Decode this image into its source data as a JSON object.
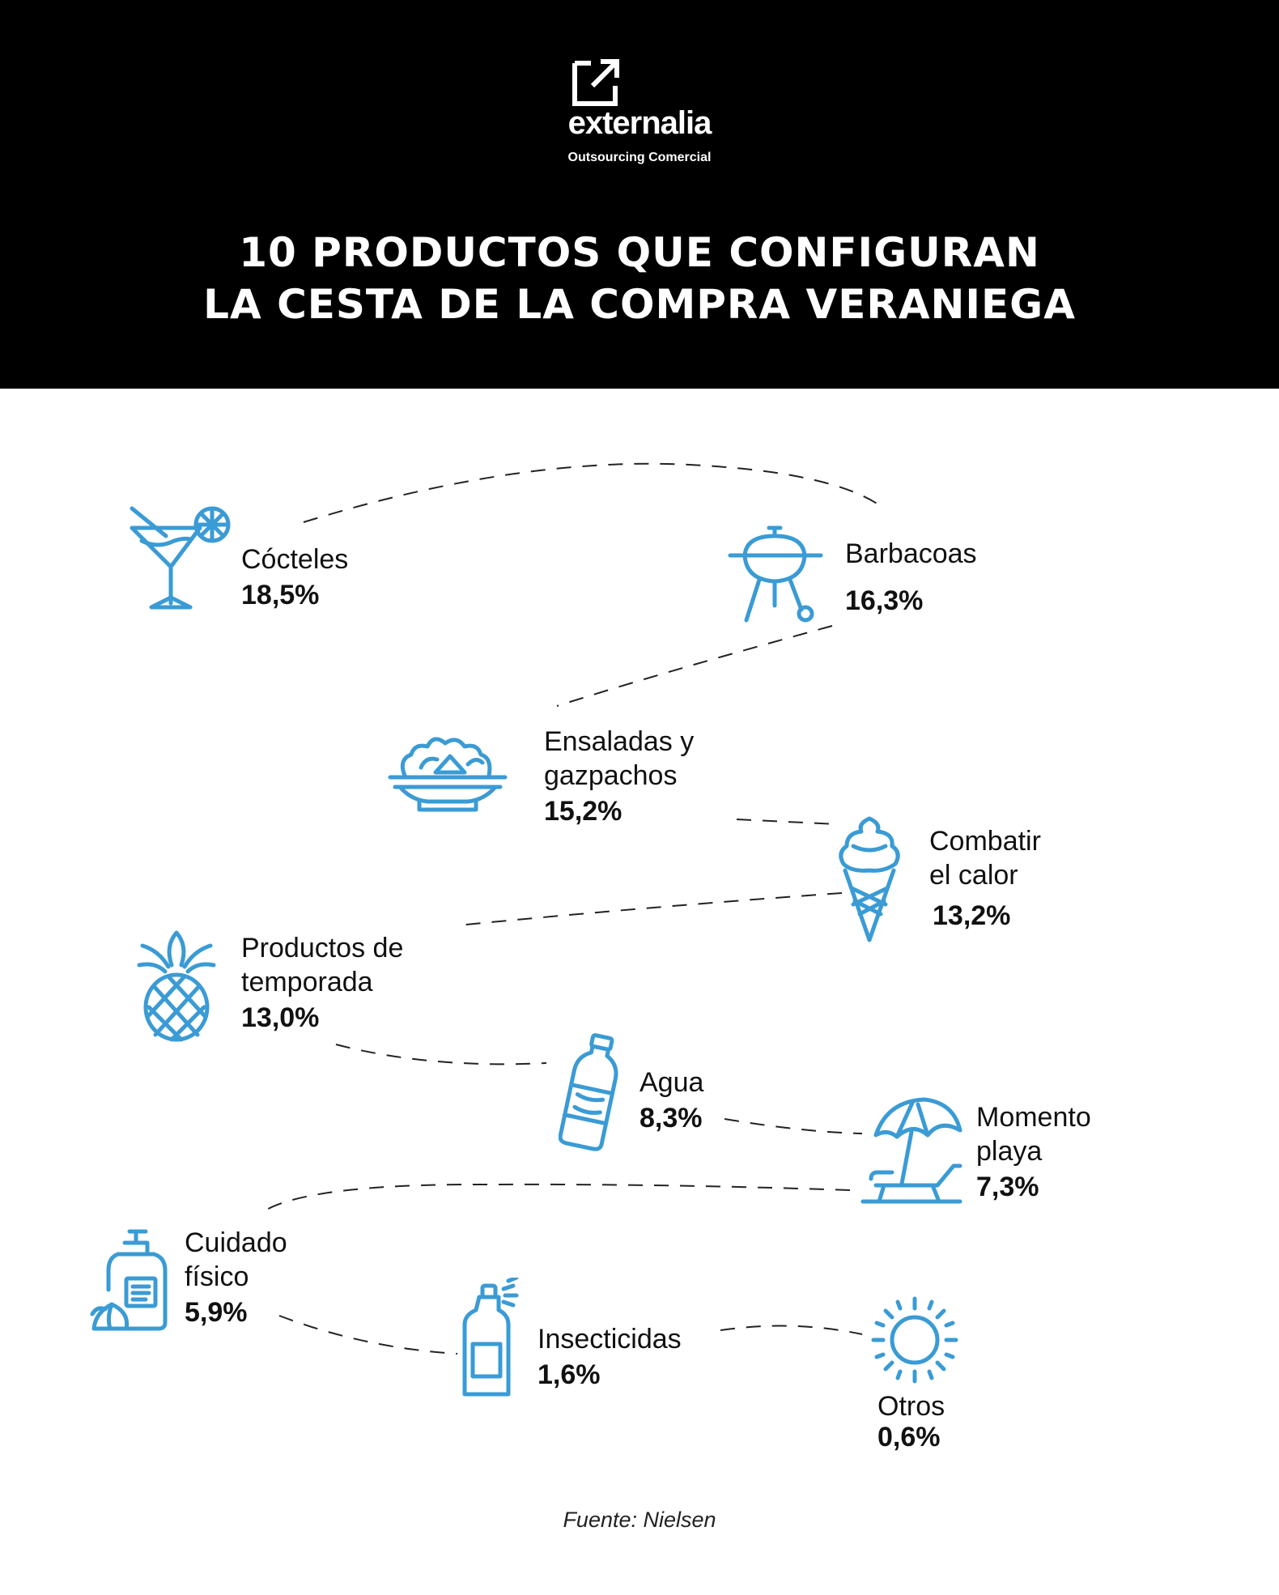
{
  "brand": {
    "name": "externalia",
    "tagline": "Outsourcing Comercial"
  },
  "title_lines": [
    "10 PRODUCTOS QUE CONFIGURAN",
    "LA CESTA DE LA COMPRA VERANIEGA"
  ],
  "source": "Fuente: Nielsen",
  "colors": {
    "header_bg": "#000000",
    "icon": "#3a9bd5",
    "text": "#111111"
  },
  "chart_data": {
    "type": "table",
    "title": "10 PRODUCTOS QUE CONFIGURAN LA CESTA DE LA COMPRA VERANIEGA",
    "unit": "%",
    "items": [
      {
        "name_lines": [
          "Cócteles"
        ],
        "value": 18.5,
        "label": "18,5%",
        "icon": "cocktail-icon"
      },
      {
        "name_lines": [
          "Barbacoas"
        ],
        "value": 16.3,
        "label": "16,3%",
        "icon": "barbecue-icon"
      },
      {
        "name_lines": [
          "Ensaladas y",
          "gazpachos"
        ],
        "value": 15.2,
        "label": "15,2%",
        "icon": "salad-bowl-icon"
      },
      {
        "name_lines": [
          "Combatir",
          "el calor"
        ],
        "value": 13.2,
        "label": "13,2%",
        "icon": "ice-cream-icon"
      },
      {
        "name_lines": [
          "Productos de",
          "temporada"
        ],
        "value": 13.0,
        "label": "13,0%",
        "icon": "pineapple-icon"
      },
      {
        "name_lines": [
          "Agua"
        ],
        "value": 8.3,
        "label": "8,3%",
        "icon": "water-bottle-icon"
      },
      {
        "name_lines": [
          "Momento",
          "playa"
        ],
        "value": 7.3,
        "label": "7,3%",
        "icon": "beach-umbrella-icon"
      },
      {
        "name_lines": [
          "Cuidado",
          "físico"
        ],
        "value": 5.9,
        "label": "5,9%",
        "icon": "lotion-bottle-icon"
      },
      {
        "name_lines": [
          "Insecticidas"
        ],
        "value": 1.6,
        "label": "1,6%",
        "icon": "spray-can-icon"
      },
      {
        "name_lines": [
          "Otros"
        ],
        "value": 0.6,
        "label": "0,6%",
        "icon": "sun-icon"
      }
    ]
  }
}
